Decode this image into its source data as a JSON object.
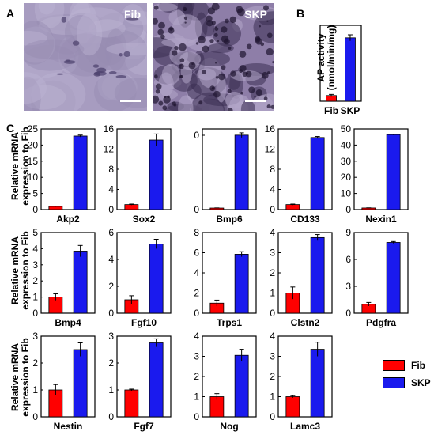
{
  "panels": {
    "a_letter": "A",
    "b_letter": "B",
    "c_letter": "C"
  },
  "micrographs": [
    {
      "label": "Fib",
      "tone": "light"
    },
    {
      "label": "SKP",
      "tone": "dark"
    }
  ],
  "panel_b": {
    "ylabel_line1": "AP activity",
    "ylabel_line2": "(nmol/min/mg)"
  },
  "panel_c_ylabel": {
    "line1": "Relative mRNA",
    "line2": "expression to Fib"
  },
  "legend": {
    "fib_label": "Fib",
    "skp_label": "SKP",
    "fib_color": "#ff0000",
    "skp_color": "#1a1aee"
  },
  "chart_data": [
    {
      "type": "bar",
      "panel": "B",
      "xlabel": "",
      "categories": [
        "Fib",
        "SKP"
      ],
      "values": [
        0.15,
        1.67
      ],
      "errors": [
        0.03,
        0.08
      ],
      "ylim": [
        0,
        2
      ],
      "yticks": [],
      "show_ticks": false
    },
    {
      "type": "bar",
      "gene": "Akp2",
      "categories": [
        "Fib",
        "SKP"
      ],
      "values": [
        1.0,
        22.8
      ],
      "errors": [
        0.1,
        0.3
      ],
      "ylim": [
        0,
        25
      ],
      "yticks": [
        0,
        5,
        10,
        15,
        20,
        25
      ]
    },
    {
      "type": "bar",
      "gene": "Sox2",
      "categories": [
        "Fib",
        "SKP"
      ],
      "values": [
        1.0,
        13.8
      ],
      "errors": [
        0.1,
        1.2
      ],
      "ylim": [
        0,
        16
      ],
      "yticks": [
        0,
        4,
        8,
        12,
        16
      ]
    },
    {
      "type": "bar",
      "gene": "Bmp6",
      "categories": [
        "Fib",
        "SKP"
      ],
      "values": [
        1.0,
        48
      ],
      "errors": [
        0.1,
        1.5
      ],
      "ylim": [
        0,
        52
      ],
      "yticks": [
        0,
        0
      ],
      "tick_labels": [
        "0",
        "0"
      ]
    },
    {
      "type": "bar",
      "gene": "CD133",
      "categories": [
        "Fib",
        "SKP"
      ],
      "values": [
        1.0,
        14.3
      ],
      "errors": [
        0.1,
        0.2
      ],
      "ylim": [
        0,
        16
      ],
      "yticks": [
        0,
        4,
        8,
        12,
        16
      ]
    },
    {
      "type": "bar",
      "gene": "Nexin1",
      "categories": [
        "Fib",
        "SKP"
      ],
      "values": [
        1.0,
        46.5
      ],
      "errors": [
        0.1,
        0.3
      ],
      "ylim": [
        0,
        50
      ],
      "yticks": [
        0,
        10,
        20,
        30,
        40,
        50
      ]
    },
    {
      "type": "bar",
      "gene": "Bmp4",
      "categories": [
        "Fib",
        "SKP"
      ],
      "values": [
        1.0,
        3.85
      ],
      "errors": [
        0.2,
        0.35
      ],
      "ylim": [
        0,
        5
      ],
      "yticks": [
        0,
        1,
        2,
        3,
        4,
        5
      ]
    },
    {
      "type": "bar",
      "gene": "Fgf10",
      "categories": [
        "Fib",
        "SKP"
      ],
      "values": [
        1.0,
        5.15
      ],
      "errors": [
        0.3,
        0.35
      ],
      "ylim": [
        0,
        6
      ],
      "yticks": [
        0,
        2,
        4,
        6
      ]
    },
    {
      "type": "bar",
      "gene": "Trps1",
      "categories": [
        "Fib",
        "SKP"
      ],
      "values": [
        1.0,
        5.85
      ],
      "errors": [
        0.3,
        0.25
      ],
      "ylim": [
        0,
        8
      ],
      "yticks": [
        0,
        2,
        4,
        6,
        8
      ]
    },
    {
      "type": "bar",
      "gene": "Clstn2",
      "categories": [
        "Fib",
        "SKP"
      ],
      "values": [
        1.0,
        3.75
      ],
      "errors": [
        0.3,
        0.15
      ],
      "ylim": [
        0,
        4
      ],
      "yticks": [
        0,
        1,
        2,
        3,
        4
      ]
    },
    {
      "type": "bar",
      "gene": "Pdgfra",
      "categories": [
        "Fib",
        "SKP"
      ],
      "values": [
        1.0,
        7.9
      ],
      "errors": [
        0.2,
        0.1
      ],
      "ylim": [
        0,
        9
      ],
      "yticks": [
        0,
        3,
        6,
        9
      ]
    },
    {
      "type": "bar",
      "gene": "Nestin",
      "categories": [
        "Fib",
        "SKP"
      ],
      "values": [
        1.0,
        2.5
      ],
      "errors": [
        0.2,
        0.25
      ],
      "ylim": [
        0,
        3
      ],
      "yticks": [
        0,
        1,
        2,
        3
      ]
    },
    {
      "type": "bar",
      "gene": "Fgf7",
      "categories": [
        "Fib",
        "SKP"
      ],
      "values": [
        1.0,
        2.75
      ],
      "errors": [
        0.03,
        0.15
      ],
      "ylim": [
        0,
        3
      ],
      "yticks": [
        0,
        1,
        2,
        3
      ]
    },
    {
      "type": "bar",
      "gene": "Nog",
      "categories": [
        "Fib",
        "SKP"
      ],
      "values": [
        1.0,
        3.05
      ],
      "errors": [
        0.15,
        0.3
      ],
      "ylim": [
        0,
        4
      ],
      "yticks": [
        0,
        1,
        2,
        3,
        4
      ]
    },
    {
      "type": "bar",
      "gene": "Lamc3",
      "categories": [
        "Fib",
        "SKP"
      ],
      "values": [
        1.0,
        3.35
      ],
      "errors": [
        0.05,
        0.35
      ],
      "ylim": [
        0,
        4
      ],
      "yticks": [
        0,
        1,
        2,
        3,
        4
      ]
    }
  ]
}
